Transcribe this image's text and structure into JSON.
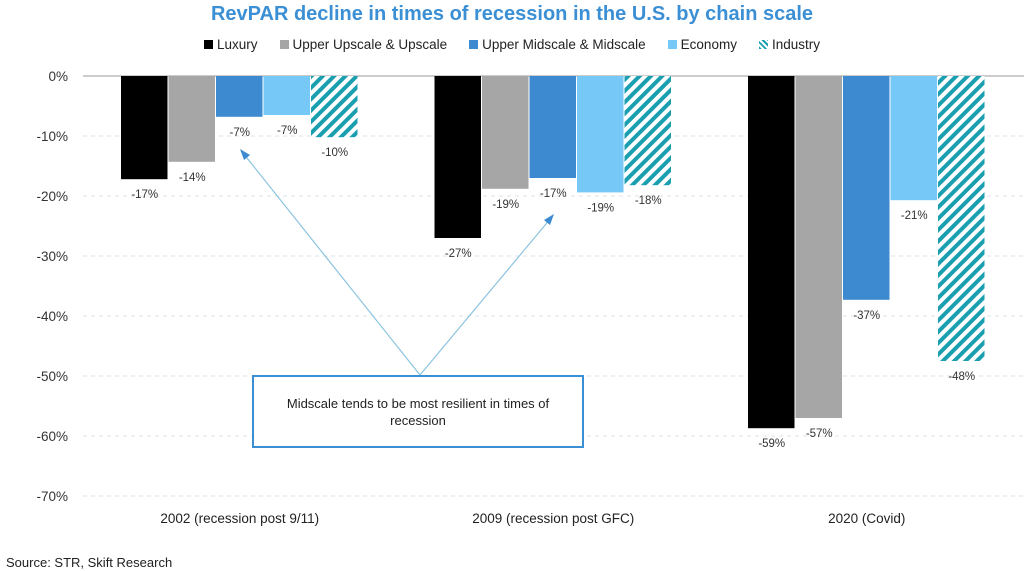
{
  "chart_data": {
    "type": "bar",
    "title": "RevPAR decline in times of recession in the U.S. by chain scale",
    "categories": [
      "2002 (recession post 9/11)",
      "2009 (recession post GFC)",
      "2020 (Covid)"
    ],
    "series": [
      {
        "name": "Luxury",
        "color": "#000000",
        "values": [
          -17.2,
          -27.0,
          -58.7
        ],
        "labels": [
          "-17%",
          "-27%",
          "-59%"
        ]
      },
      {
        "name": "Upper Upscale & Upscale",
        "color": "#a6a6a6",
        "values": [
          -14.3,
          -18.8,
          -57.0
        ],
        "labels": [
          "-14%",
          "-19%",
          "-57%"
        ]
      },
      {
        "name": "Upper Midscale & Midscale",
        "color": "#3d8ad0",
        "values": [
          -6.8,
          -17.0,
          -37.3
        ],
        "labels": [
          "-7%",
          "-17%",
          "-37%"
        ]
      },
      {
        "name": "Economy",
        "color": "#76c8f7",
        "values": [
          -6.5,
          -19.4,
          -20.7
        ],
        "labels": [
          "-7%",
          "-19%",
          "-21%"
        ]
      },
      {
        "name": "Industry",
        "color": "#1a9fb0",
        "pattern": "hatched",
        "values": [
          -10.2,
          -18.2,
          -47.5
        ],
        "labels": [
          "-10%",
          "-18%",
          "-48%"
        ]
      }
    ],
    "ylim": [
      -70,
      0
    ],
    "yticks": [
      0,
      -10,
      -20,
      -30,
      -40,
      -50,
      -60,
      -70
    ],
    "ytick_labels": [
      "0%",
      "-10%",
      "-20%",
      "-30%",
      "-40%",
      "-50%",
      "-60%",
      "-70%"
    ],
    "grid": true,
    "legend_position": "top",
    "annotation": "Midscale tends to be most resilient in times of recession"
  },
  "source": "Source: STR, Skift Research"
}
